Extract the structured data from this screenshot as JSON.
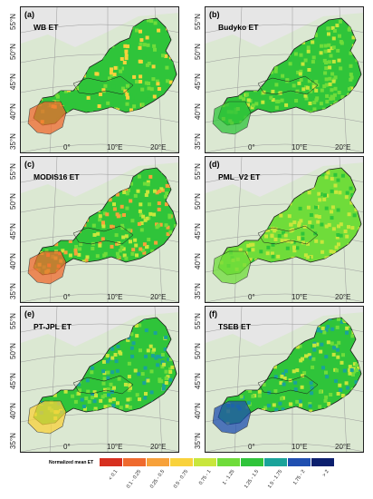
{
  "panels": [
    {
      "letter": "(a)",
      "name": "WB ET"
    },
    {
      "letter": "(b)",
      "name": "Budyko ET"
    },
    {
      "letter": "(c)",
      "name": "MODIS16 ET"
    },
    {
      "letter": "(d)",
      "name": "PML_V2 ET"
    },
    {
      "letter": "(e)",
      "name": "PT-JPL ET"
    },
    {
      "letter": "(f)",
      "name": "TSEB ET"
    }
  ],
  "lat_ticks": [
    "55°N",
    "50°N",
    "45°N",
    "40°N",
    "35°N"
  ],
  "lon_ticks": [
    "0°",
    "10°E",
    "20°E"
  ],
  "legend": {
    "title": "Normalized mean ET",
    "classes": [
      {
        "label": "< 0.1",
        "color": "#d7301f"
      },
      {
        "label": "0.1 - 0.25",
        "color": "#ef6a2e"
      },
      {
        "label": "0.25 - 0.5",
        "color": "#f7a13a"
      },
      {
        "label": "0.5 - 0.75",
        "color": "#f9d23c"
      },
      {
        "label": "0.75 - 1",
        "color": "#c8e63c"
      },
      {
        "label": "1 - 1.25",
        "color": "#6fdc3a"
      },
      {
        "label": "1.25 - 1.5",
        "color": "#2fc43a"
      },
      {
        "label": "1.5 - 1.75",
        "color": "#19a39a"
      },
      {
        "label": "1.75 - 2",
        "color": "#1f4fb0"
      },
      {
        "label": "> 2",
        "color": "#0b1f6e"
      }
    ]
  },
  "palettes": {
    "a": [
      "#2fc43a",
      "#6fdc3a",
      "#2fc43a",
      "#f9d23c",
      "#ef6a2e"
    ],
    "b": [
      "#2fc43a",
      "#6fdc3a",
      "#6fdc3a",
      "#c8e63c",
      "#2fc43a"
    ],
    "c": [
      "#2fc43a",
      "#6fdc3a",
      "#c8e63c",
      "#f7a13a",
      "#ef6a2e"
    ],
    "d": [
      "#6fdc3a",
      "#c8e63c",
      "#2fc43a",
      "#c8e63c",
      "#6fdc3a"
    ],
    "e": [
      "#2fc43a",
      "#19a39a",
      "#6fdc3a",
      "#c8e63c",
      "#f9d23c"
    ],
    "f": [
      "#2fc43a",
      "#19a39a",
      "#6fdc3a",
      "#c8e63c",
      "#1f4fb0"
    ]
  }
}
